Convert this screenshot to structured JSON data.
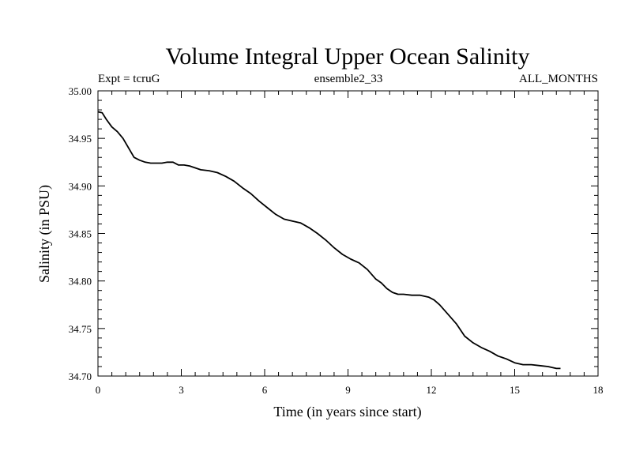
{
  "chart_data": {
    "type": "line",
    "title": "Volume Integral Upper Ocean Salinity",
    "subtitle_left": "Expt = tcruG",
    "subtitle_center": "ensemble2_33",
    "subtitle_right": "ALL_MONTHS",
    "xlabel": "Time (in years since start)",
    "ylabel": "Salinity (in PSU)",
    "xlim": [
      0,
      18
    ],
    "ylim": [
      34.7,
      35.0
    ],
    "xticks": [
      "0",
      "3",
      "6",
      "9",
      "12",
      "15",
      "18"
    ],
    "yticks": [
      "34.70",
      "34.75",
      "34.80",
      "34.85",
      "34.90",
      "34.95",
      "35.00"
    ],
    "grid": false,
    "series": [
      {
        "color": "#000000",
        "x": [
          0.0,
          0.15,
          0.3,
          0.5,
          0.7,
          0.9,
          1.1,
          1.3,
          1.5,
          1.7,
          1.9,
          2.1,
          2.3,
          2.5,
          2.7,
          2.9,
          3.1,
          3.3,
          3.5,
          3.7,
          4.0,
          4.3,
          4.6,
          4.9,
          5.2,
          5.5,
          5.8,
          6.1,
          6.4,
          6.7,
          7.0,
          7.3,
          7.6,
          7.9,
          8.2,
          8.5,
          8.8,
          9.1,
          9.4,
          9.7,
          10.0,
          10.2,
          10.4,
          10.6,
          10.8,
          11.0,
          11.3,
          11.6,
          11.9,
          12.1,
          12.3,
          12.6,
          12.9,
          13.2,
          13.5,
          13.8,
          14.1,
          14.4,
          14.7,
          15.0,
          15.3,
          15.6,
          15.9,
          16.2,
          16.5,
          16.65
        ],
        "values": [
          34.978,
          34.977,
          34.97,
          34.962,
          34.957,
          34.95,
          34.94,
          34.93,
          34.927,
          34.925,
          34.924,
          34.924,
          34.924,
          34.925,
          34.925,
          34.922,
          34.922,
          34.921,
          34.919,
          34.917,
          34.916,
          34.914,
          34.91,
          34.905,
          34.898,
          34.892,
          34.884,
          34.877,
          34.87,
          34.865,
          34.863,
          34.861,
          34.856,
          34.85,
          34.843,
          34.835,
          34.828,
          34.823,
          34.819,
          34.812,
          34.802,
          34.798,
          34.792,
          34.788,
          34.786,
          34.786,
          34.785,
          34.785,
          34.783,
          34.78,
          34.775,
          34.765,
          34.755,
          34.742,
          34.735,
          34.73,
          34.726,
          34.721,
          34.718,
          34.714,
          34.712,
          34.712,
          34.711,
          34.71,
          34.708,
          34.708
        ]
      }
    ]
  }
}
